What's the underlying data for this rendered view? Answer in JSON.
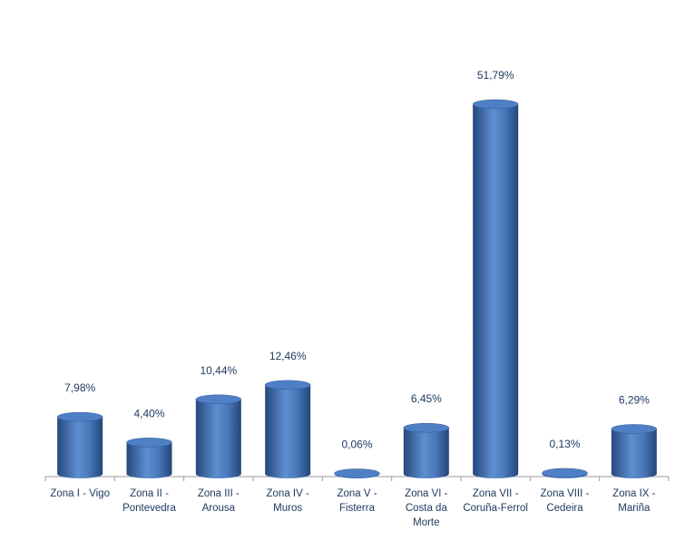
{
  "chart_data": {
    "type": "cylinder-bar",
    "categories": [
      "Zona I - Vigo",
      "Zona II - Pontevedra",
      "Zona III - Arousa",
      "Zona IV - Muros",
      "Zona V - Fisterra",
      "Zona VI - Costa da Morte",
      "Zona VII - Coruña-Ferrol",
      "Zona VIII - Cedeira",
      "Zona IX - Mariña"
    ],
    "values": [
      7.98,
      4.4,
      10.44,
      12.46,
      0.06,
      6.45,
      51.79,
      0.13,
      6.29
    ],
    "value_labels": [
      "7,98%",
      "4,40%",
      "10,44%",
      "12,46%",
      "0,06%",
      "6,45%",
      "51,79%",
      "0,13%",
      "6,29%"
    ],
    "color": "#3d6cb0"
  }
}
